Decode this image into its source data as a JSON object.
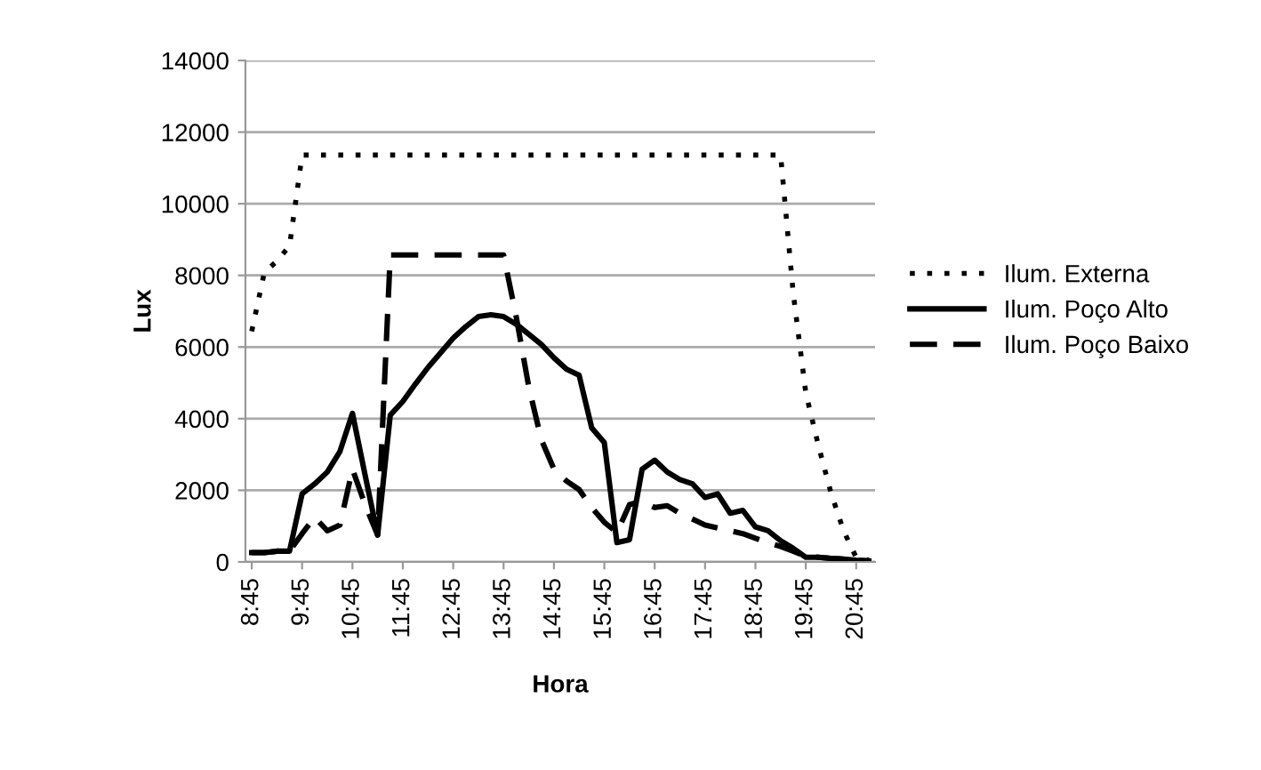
{
  "chart_data": {
    "type": "line",
    "xlabel": "Hora",
    "ylabel": "Lux",
    "categories": [
      "8:45",
      null,
      null,
      null,
      "9:45",
      null,
      null,
      null,
      "10:45",
      null,
      null,
      null,
      "11:45",
      null,
      null,
      null,
      "12:45",
      null,
      null,
      null,
      "13:45",
      null,
      null,
      null,
      "14:45",
      null,
      null,
      null,
      "15:45",
      null,
      null,
      null,
      "16:45",
      null,
      null,
      null,
      "17:45",
      null,
      null,
      null,
      "18:45",
      null,
      null,
      null,
      "19:45",
      null,
      null,
      null,
      "20:45",
      null
    ],
    "series": [
      {
        "name": "Ilum. Externa",
        "color": "#000000",
        "line_style": "dotted",
        "values": [
          6440,
          8080,
          8400,
          8820,
          11360,
          11360,
          11360,
          11360,
          11360,
          11360,
          11360,
          11360,
          11360,
          11360,
          11360,
          11360,
          11360,
          11360,
          11360,
          11360,
          11360,
          11360,
          11360,
          11360,
          11360,
          11360,
          11360,
          11360,
          11360,
          11360,
          11360,
          11360,
          11360,
          11360,
          11360,
          11360,
          11360,
          11360,
          11360,
          11360,
          11360,
          11360,
          11360,
          7510,
          4720,
          3250,
          1930,
          870,
          130,
          50
        ]
      },
      {
        "name": "Ilum. Poço Alto",
        "color": "#000000",
        "line_style": "solid",
        "values": [
          260,
          260,
          300,
          300,
          1900,
          2180,
          2510,
          3080,
          4150,
          2430,
          750,
          4100,
          4480,
          4970,
          5430,
          5840,
          6250,
          6570,
          6850,
          6900,
          6850,
          6640,
          6360,
          6070,
          5700,
          5380,
          5210,
          3740,
          3330,
          540,
          620,
          2590,
          2840,
          2510,
          2300,
          2180,
          1800,
          1900,
          1360,
          1440,
          980,
          870,
          590,
          380,
          130,
          130,
          100,
          80,
          50,
          30
        ]
      },
      {
        "name": "Ilum. Poço Baixo",
        "color": "#000000",
        "line_style": "dashed",
        "values": [
          260,
          260,
          300,
          300,
          790,
          1250,
          870,
          1030,
          2590,
          1600,
          750,
          8570,
          8570,
          8570,
          8570,
          8570,
          8570,
          8570,
          8570,
          8570,
          8570,
          6850,
          4890,
          3410,
          2590,
          2260,
          2020,
          1520,
          1110,
          820,
          1600,
          1690,
          1520,
          1570,
          1360,
          1200,
          1030,
          950,
          870,
          790,
          660,
          540,
          430,
          300,
          160,
          130,
          100,
          80,
          50,
          30
        ]
      }
    ],
    "ylim": [
      0,
      14000
    ],
    "yticks": [
      0,
      2000,
      4000,
      6000,
      8000,
      10000,
      12000,
      14000
    ],
    "grid": "y",
    "legend": "right",
    "marker": "none"
  }
}
